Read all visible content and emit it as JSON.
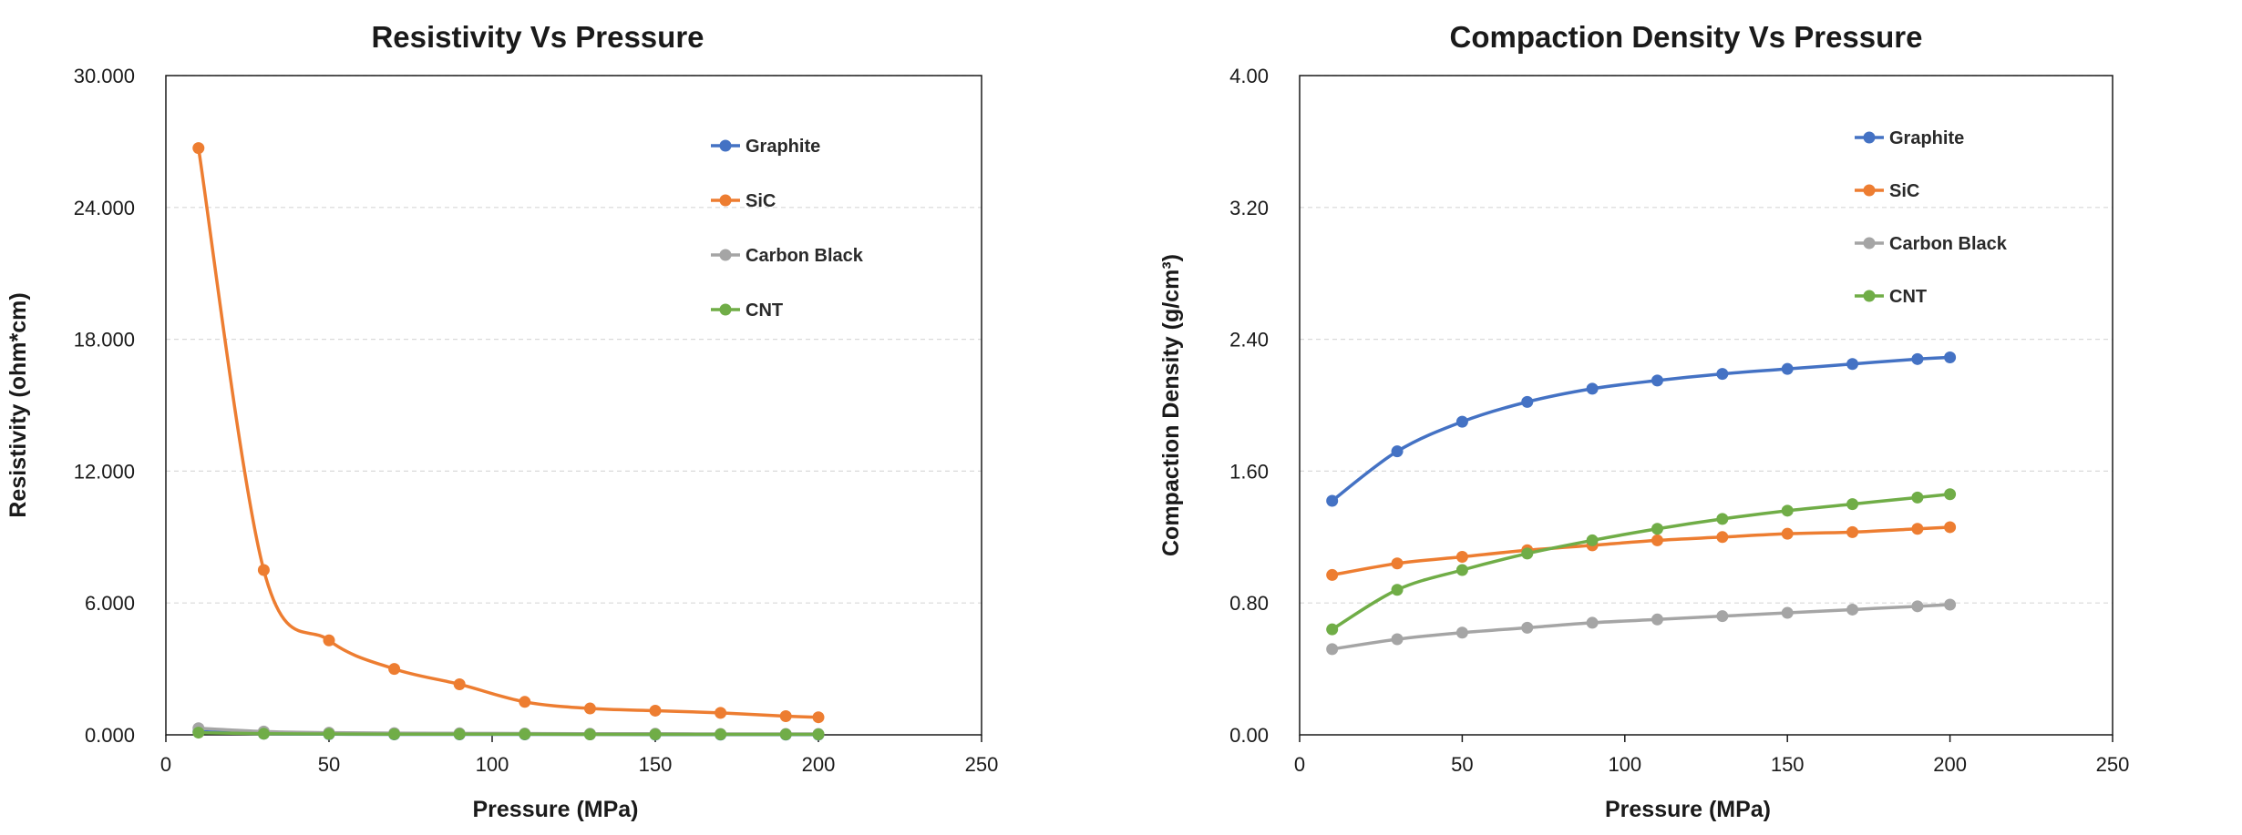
{
  "chart_data": [
    {
      "type": "line",
      "title": "Resistivity Vs Pressure",
      "xlabel": "Pressure  (MPa)",
      "ylabel": "Resistivity (ohm*cm)",
      "xlim": [
        0,
        250
      ],
      "ylim": [
        0,
        30
      ],
      "xticks": [
        0,
        50,
        100,
        150,
        200,
        250
      ],
      "yticks": [
        0,
        6,
        12,
        18,
        24,
        30
      ],
      "xtick_labels": [
        "0",
        "50",
        "100",
        "150",
        "200",
        "250"
      ],
      "ytick_labels": [
        "0.000",
        "6.000",
        "12.000",
        "18.000",
        "24.000",
        "30.000"
      ],
      "grid": true,
      "legend_position": "top-right",
      "x": [
        10,
        30,
        50,
        70,
        90,
        110,
        130,
        150,
        170,
        190,
        200
      ],
      "series": [
        {
          "name": "Graphite",
          "color": "#4472C4",
          "values": [
            0.15,
            0.05,
            0.03,
            0.02,
            0.02,
            0.02,
            0.02,
            0.01,
            0.01,
            0.01,
            0.01
          ]
        },
        {
          "name": "SiC",
          "color": "#ED7D31",
          "values": [
            26.7,
            7.5,
            4.3,
            3.0,
            2.3,
            1.5,
            1.2,
            1.1,
            1.0,
            0.85,
            0.8
          ]
        },
        {
          "name": "Carbon Black",
          "color": "#A5A5A5",
          "values": [
            0.3,
            0.15,
            0.1,
            0.08,
            0.07,
            0.06,
            0.05,
            0.05,
            0.04,
            0.04,
            0.04
          ]
        },
        {
          "name": "CNT",
          "color": "#70AD47",
          "values": [
            0.1,
            0.05,
            0.04,
            0.03,
            0.03,
            0.03,
            0.02,
            0.02,
            0.02,
            0.02,
            0.02
          ]
        }
      ]
    },
    {
      "type": "line",
      "title": "Compaction Density  Vs Pressure",
      "xlabel": "Pressure  (MPa)",
      "ylabel": "Compaction Density (g/cm³)",
      "xlim": [
        0,
        250
      ],
      "ylim": [
        0,
        4
      ],
      "xticks": [
        0,
        50,
        100,
        150,
        200,
        250
      ],
      "yticks": [
        0,
        0.8,
        1.6,
        2.4,
        3.2,
        4.0
      ],
      "xtick_labels": [
        "0",
        "50",
        "100",
        "150",
        "200",
        "250"
      ],
      "ytick_labels": [
        "0.00",
        "0.80",
        "1.60",
        "2.40",
        "3.20",
        "4.00"
      ],
      "grid": true,
      "legend_position": "top-right",
      "x": [
        10,
        30,
        50,
        70,
        90,
        110,
        130,
        150,
        170,
        190,
        200
      ],
      "series": [
        {
          "name": "Graphite",
          "color": "#4472C4",
          "values": [
            1.42,
            1.72,
            1.9,
            2.02,
            2.1,
            2.15,
            2.19,
            2.22,
            2.25,
            2.28,
            2.29
          ]
        },
        {
          "name": "SiC",
          "color": "#ED7D31",
          "values": [
            0.97,
            1.04,
            1.08,
            1.12,
            1.15,
            1.18,
            1.2,
            1.22,
            1.23,
            1.25,
            1.26
          ]
        },
        {
          "name": "Carbon Black",
          "color": "#A5A5A5",
          "values": [
            0.52,
            0.58,
            0.62,
            0.65,
            0.68,
            0.7,
            0.72,
            0.74,
            0.76,
            0.78,
            0.79
          ]
        },
        {
          "name": "CNT",
          "color": "#70AD47",
          "values": [
            0.64,
            0.88,
            1.0,
            1.1,
            1.18,
            1.25,
            1.31,
            1.36,
            1.4,
            1.44,
            1.46
          ]
        }
      ]
    }
  ]
}
